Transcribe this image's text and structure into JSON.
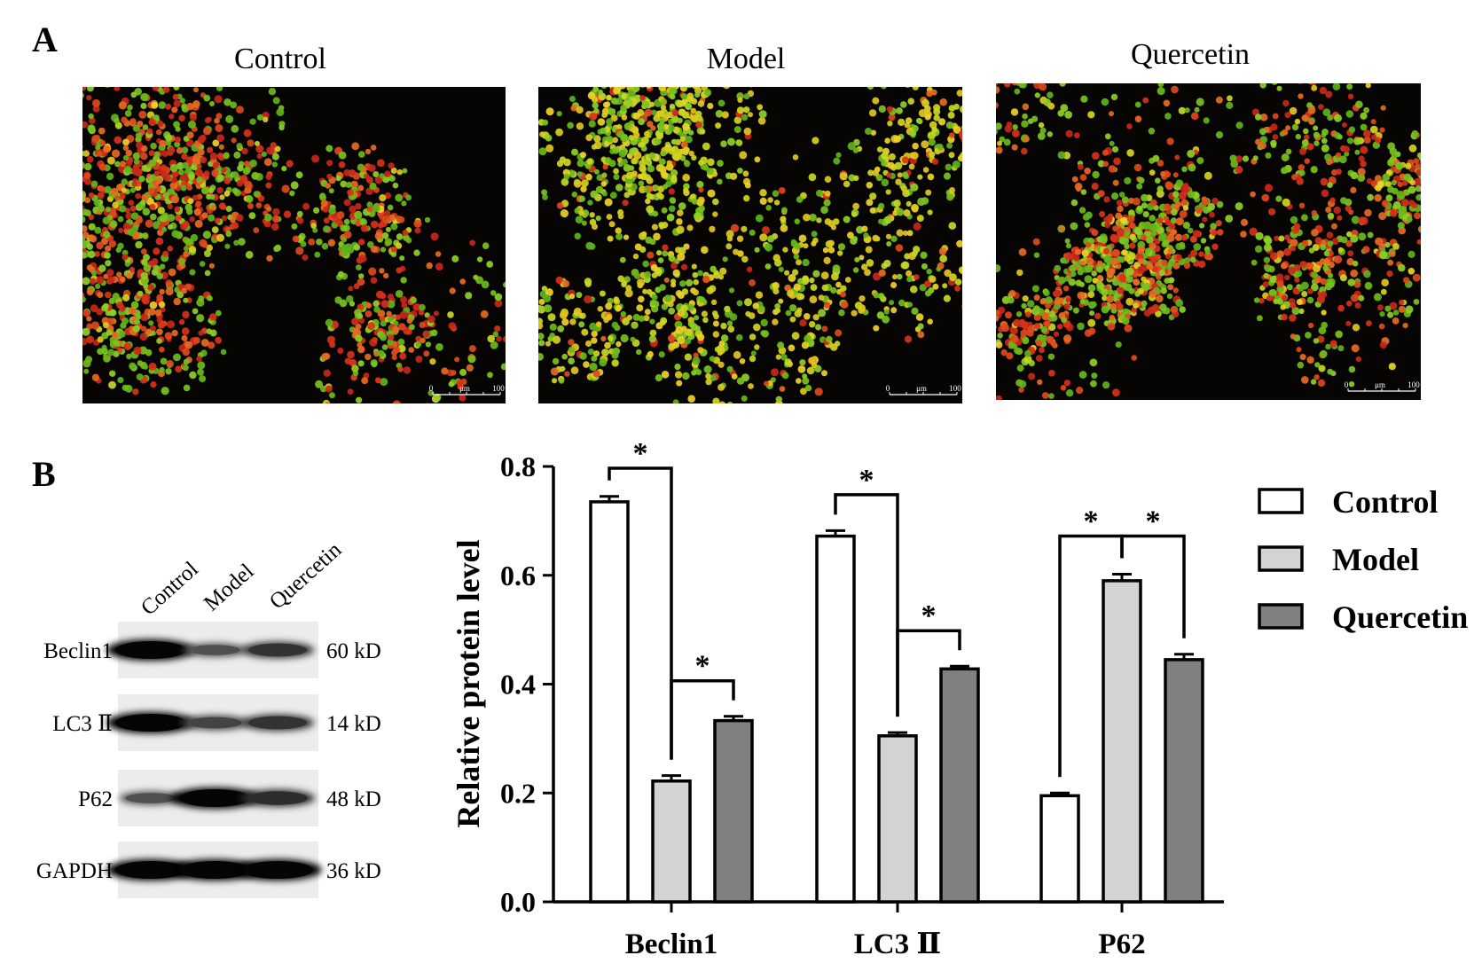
{
  "panels": {
    "a_label": "A",
    "b_label": "B"
  },
  "micrographs": [
    {
      "title": "Control",
      "scale_min": "0",
      "scale_unit": "μm",
      "scale_max": "100",
      "seed": 11,
      "red_fraction": 0.55,
      "yellow_fraction": 0.05
    },
    {
      "title": "Model",
      "scale_min": "0",
      "scale_unit": "μm",
      "scale_max": "100",
      "seed": 23,
      "red_fraction": 0.08,
      "yellow_fraction": 0.55
    },
    {
      "title": "Quercetin",
      "scale_min": "0",
      "scale_unit": "μm",
      "scale_max": "100",
      "seed": 37,
      "red_fraction": 0.5,
      "yellow_fraction": 0.08
    }
  ],
  "blot": {
    "lanes": [
      "Control",
      "Model",
      "Quercetin"
    ],
    "rows": [
      {
        "protein": "Beclin1",
        "size": "60 kD",
        "intensity": [
          1.0,
          0.35,
          0.6
        ]
      },
      {
        "protein": "LC3 Ⅱ",
        "size": "14 kD",
        "intensity": [
          1.0,
          0.45,
          0.6
        ]
      },
      {
        "protein": "P62",
        "size": "48 kD",
        "intensity": [
          0.35,
          1.0,
          0.65
        ]
      },
      {
        "protein": "GAPDH",
        "size": "36 kD",
        "intensity": [
          1.0,
          1.0,
          1.0
        ]
      }
    ]
  },
  "chart_data": {
    "type": "bar",
    "title": "",
    "xlabel": "",
    "ylabel": "Relative  protein level",
    "ylim": [
      0,
      0.8
    ],
    "yticks": [
      "0.0",
      "0.2",
      "0.4",
      "0.6",
      "0.8"
    ],
    "categories": [
      "Beclin1",
      "LC3 Ⅱ",
      "P62"
    ],
    "series": [
      {
        "name": "Control",
        "color": "#ffffff",
        "values": [
          0.735,
          0.672,
          0.195
        ],
        "errors": [
          0.01,
          0.01,
          0.005
        ]
      },
      {
        "name": "Model",
        "color": "#d3d3d3",
        "values": [
          0.222,
          0.305,
          0.59
        ],
        "errors": [
          0.01,
          0.006,
          0.012
        ]
      },
      {
        "name": "Quercetin",
        "color": "#808080",
        "values": [
          0.333,
          0.428,
          0.445
        ],
        "errors": [
          0.008,
          0.005,
          0.01
        ]
      }
    ],
    "legend_position": "right",
    "significance": [
      {
        "category": 0,
        "from": 0,
        "to": 1,
        "label": "*"
      },
      {
        "category": 0,
        "from": 1,
        "to": 2,
        "label": "*"
      },
      {
        "category": 1,
        "from": 0,
        "to": 1,
        "label": "*"
      },
      {
        "category": 1,
        "from": 1,
        "to": 2,
        "label": "*"
      },
      {
        "category": 2,
        "from": 1,
        "to": 0,
        "label": "*"
      },
      {
        "category": 2,
        "from": 1,
        "to": 2,
        "label": "*"
      }
    ]
  }
}
